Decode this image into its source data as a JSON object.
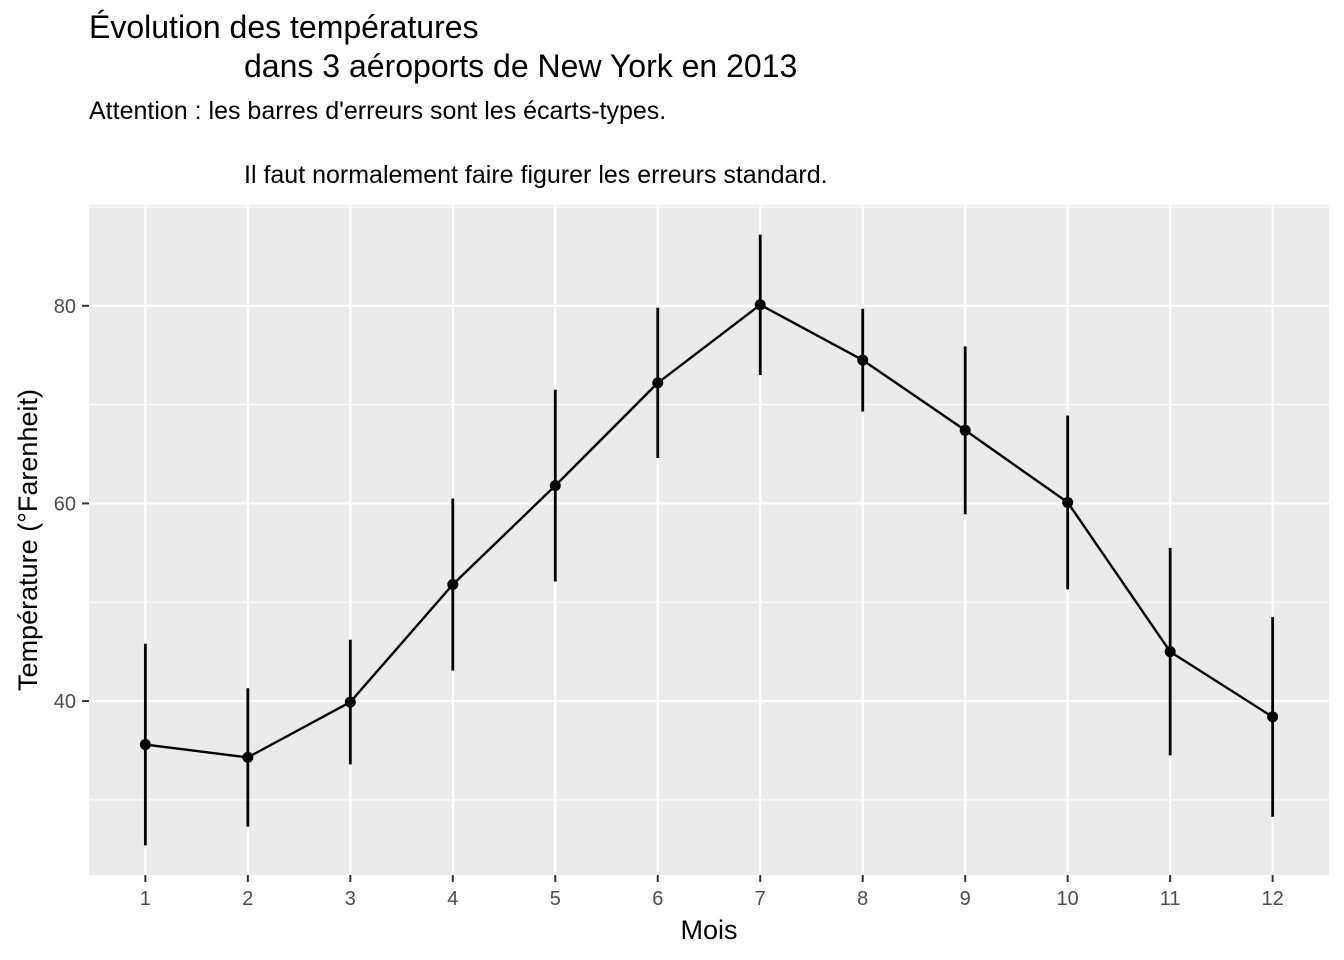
{
  "chart_data": {
    "type": "line",
    "title_lines": [
      "Évolution des températures",
      "dans 3 aéroports de New York en 2013"
    ],
    "subtitle_lines": [
      "Attention : les barres d'erreurs sont les écarts-types.",
      "Il faut normalement faire figurer les erreurs standard."
    ],
    "xlabel": "Mois",
    "ylabel": "Température (°Farenheit)",
    "x": [
      1,
      2,
      3,
      4,
      5,
      6,
      7,
      8,
      9,
      10,
      11,
      12
    ],
    "x_tick_labels": [
      "1",
      "2",
      "3",
      "4",
      "5",
      "6",
      "7",
      "8",
      "9",
      "10",
      "11",
      "12"
    ],
    "y_ticks": [
      40,
      60,
      80
    ],
    "y_tick_labels": [
      "40",
      "60",
      "80"
    ],
    "ylim": [
      22.4,
      90.2
    ],
    "xlim": [
      0.45,
      12.55
    ],
    "grid": true,
    "series": [
      {
        "values": [
          35.6,
          34.3,
          39.9,
          51.8,
          61.8,
          72.2,
          80.1,
          74.5,
          67.4,
          60.1,
          45.0,
          38.4
        ],
        "error_low": [
          25.4,
          27.3,
          33.6,
          43.1,
          52.1,
          64.6,
          73.0,
          69.3,
          58.9,
          51.3,
          34.5,
          28.3
        ],
        "error_high": [
          45.8,
          41.3,
          46.2,
          60.5,
          71.5,
          79.8,
          87.2,
          79.7,
          75.9,
          68.9,
          55.5,
          48.5
        ]
      }
    ],
    "colors": {
      "panel": "#ebebeb",
      "grid": "#ffffff",
      "series": "#000000",
      "axis_text": "#4d4d4d",
      "tick": "#333333"
    }
  }
}
